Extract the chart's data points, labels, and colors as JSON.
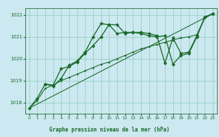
{
  "title": "Graphe pression niveau de la mer (hPa)",
  "background_color": "#cce8f0",
  "grid_color": "#88ccbb",
  "line_color": "#1a6b2a",
  "xlabel_bg": "#2a6b3a",
  "xlabel_fg": "#cceecc",
  "xlim": [
    -0.5,
    23.5
  ],
  "ylim": [
    1017.5,
    1022.3
  ],
  "yticks": [
    1018,
    1019,
    1020,
    1021,
    1022
  ],
  "xticks": [
    0,
    1,
    2,
    3,
    4,
    5,
    6,
    7,
    8,
    9,
    10,
    11,
    12,
    13,
    14,
    15,
    16,
    17,
    18,
    19,
    20,
    21,
    22,
    23
  ],
  "series": [
    {
      "x": [
        0,
        1,
        2,
        3,
        4,
        5,
        6,
        7,
        8,
        9,
        10,
        11,
        12,
        13,
        14,
        15,
        16,
        17,
        18,
        19,
        20,
        21,
        22,
        23
      ],
      "y": [
        1017.75,
        1018.2,
        1018.85,
        1018.8,
        1019.55,
        1019.65,
        1019.85,
        1020.25,
        1020.6,
        1021.0,
        1021.55,
        1021.55,
        1021.15,
        1021.2,
        1021.2,
        1021.15,
        1021.05,
        1019.8,
        1020.95,
        1020.25,
        1020.3,
        1021.05,
        1021.9,
        1022.05
      ],
      "marker": "D",
      "markersize": 2.5,
      "linewidth": 1.0
    },
    {
      "x": [
        0,
        1,
        2,
        3,
        4,
        5,
        6,
        7,
        8,
        9,
        10,
        11,
        12,
        13,
        14,
        15,
        16,
        17,
        18,
        19,
        20,
        21,
        22,
        23
      ],
      "y": [
        1017.75,
        1018.1,
        1018.65,
        1018.8,
        1019.0,
        1019.15,
        1019.3,
        1019.45,
        1019.6,
        1019.75,
        1019.85,
        1020.0,
        1020.15,
        1020.3,
        1020.45,
        1020.55,
        1020.65,
        1020.75,
        1020.85,
        1020.95,
        1021.0,
        1021.1,
        1021.85,
        1022.05
      ],
      "marker": "D",
      "markersize": 1.5,
      "linewidth": 0.8
    },
    {
      "x": [
        0,
        23
      ],
      "y": [
        1017.75,
        1022.05
      ],
      "marker": null,
      "markersize": 0,
      "linewidth": 0.8
    },
    {
      "x": [
        2,
        3,
        4,
        5,
        6,
        7,
        8,
        9,
        10,
        11,
        12,
        13,
        14,
        15,
        16,
        17,
        18,
        19,
        20,
        21,
        22,
        23
      ],
      "y": [
        1018.85,
        1018.75,
        1019.1,
        1019.7,
        1019.9,
        1020.3,
        1021.0,
        1021.6,
        1021.55,
        1021.15,
        1021.2,
        1021.2,
        1021.15,
        1021.05,
        1021.0,
        1021.05,
        1019.75,
        1020.15,
        1020.25,
        1021.0,
        1021.9,
        1022.05
      ],
      "marker": "D",
      "markersize": 2.5,
      "linewidth": 1.0
    }
  ]
}
